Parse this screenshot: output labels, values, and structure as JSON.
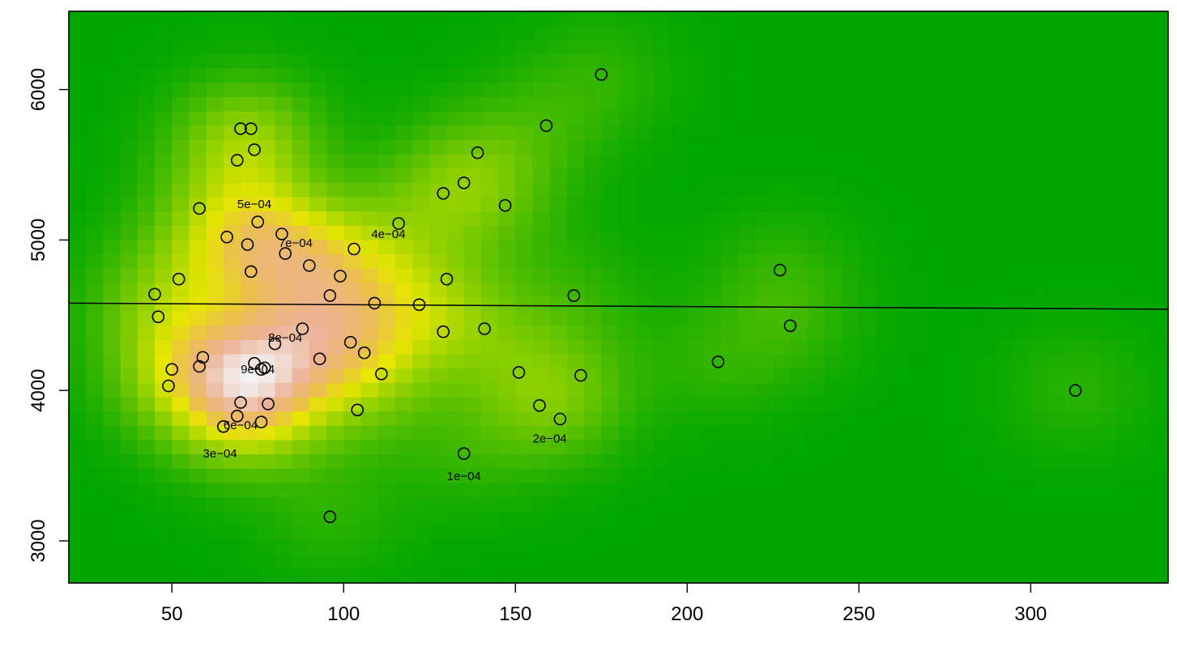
{
  "chart_data": {
    "type": "scatter",
    "overlay": "2d-density-heatmap-with-contours",
    "xlim": [
      20,
      340
    ],
    "ylim": [
      2720,
      6520
    ],
    "x_ticks": [
      50,
      100,
      150,
      200,
      250,
      300
    ],
    "x_tick_labels": [
      "50",
      "100",
      "150",
      "200",
      "250",
      "300"
    ],
    "y_ticks": [
      3000,
      4000,
      5000,
      6000
    ],
    "y_tick_labels": [
      "3000",
      "4000",
      "5000",
      "6000"
    ],
    "grid": false,
    "legend": "none",
    "colors": {
      "low": "#00a600",
      "mid": "#e6e600",
      "high": "#f2f2f2",
      "contour": "#000000",
      "point": "#000000"
    },
    "contour_levels": [
      {
        "value": 0.0001,
        "label": "1e−04"
      },
      {
        "value": 0.0002,
        "label": "2e−04"
      },
      {
        "value": 0.0003,
        "label": "3e−04"
      },
      {
        "value": 0.0004,
        "label": "4e−04"
      },
      {
        "value": 0.0005,
        "label": "5e−04"
      },
      {
        "value": 0.0006,
        "label": "6e−04"
      },
      {
        "value": 0.0007,
        "label": "7e−04"
      },
      {
        "value": 0.0008,
        "label": "8e−04"
      },
      {
        "value": 0.0009,
        "label": "9e−04"
      }
    ],
    "contour_label_positions": [
      {
        "label": "1e−04",
        "x": 135,
        "y": 3430
      },
      {
        "label": "2e−04",
        "x": 160,
        "y": 3680
      },
      {
        "label": "3e−04",
        "x": 64,
        "y": 3580
      },
      {
        "label": "4e−04",
        "x": 113,
        "y": 5040
      },
      {
        "label": "5e−04",
        "x": 74,
        "y": 5240
      },
      {
        "label": "6e−04",
        "x": 70,
        "y": 3770
      },
      {
        "label": "7e−04",
        "x": 86,
        "y": 4980
      },
      {
        "label": "8e−04",
        "x": 83,
        "y": 4350
      },
      {
        "label": "9e−04",
        "x": 75,
        "y": 4140
      }
    ],
    "reference_line": {
      "x1": 20,
      "y1": 4580,
      "x2": 340,
      "y2": 4540
    },
    "points": [
      [
        45,
        4640
      ],
      [
        46,
        4490
      ],
      [
        49,
        4030
      ],
      [
        50,
        4140
      ],
      [
        52,
        4740
      ],
      [
        58,
        5210
      ],
      [
        58,
        4160
      ],
      [
        59,
        4220
      ],
      [
        65,
        3760
      ],
      [
        66,
        5020
      ],
      [
        69,
        3830
      ],
      [
        69,
        5530
      ],
      [
        70,
        5740
      ],
      [
        70,
        3920
      ],
      [
        72,
        4970
      ],
      [
        73,
        4790
      ],
      [
        73,
        5740
      ],
      [
        74,
        5600
      ],
      [
        74,
        4180
      ],
      [
        75,
        5120
      ],
      [
        76,
        3790
      ],
      [
        76,
        4140
      ],
      [
        77,
        4150
      ],
      [
        78,
        3910
      ],
      [
        80,
        4310
      ],
      [
        82,
        5040
      ],
      [
        83,
        4910
      ],
      [
        88,
        4410
      ],
      [
        90,
        4830
      ],
      [
        93,
        4210
      ],
      [
        96,
        4630
      ],
      [
        96,
        3160
      ],
      [
        99,
        4760
      ],
      [
        102,
        4320
      ],
      [
        103,
        4940
      ],
      [
        104,
        3870
      ],
      [
        106,
        4250
      ],
      [
        109,
        4580
      ],
      [
        111,
        4110
      ],
      [
        116,
        5110
      ],
      [
        122,
        4570
      ],
      [
        129,
        4390
      ],
      [
        129,
        5310
      ],
      [
        130,
        4740
      ],
      [
        135,
        5380
      ],
      [
        135,
        3580
      ],
      [
        139,
        5580
      ],
      [
        141,
        4410
      ],
      [
        147,
        5230
      ],
      [
        151,
        4120
      ],
      [
        157,
        3900
      ],
      [
        159,
        5760
      ],
      [
        163,
        3810
      ],
      [
        167,
        4630
      ],
      [
        169,
        4100
      ],
      [
        175,
        6100
      ],
      [
        209,
        4190
      ],
      [
        227,
        4800
      ],
      [
        230,
        4430
      ],
      [
        313,
        4000
      ]
    ]
  }
}
